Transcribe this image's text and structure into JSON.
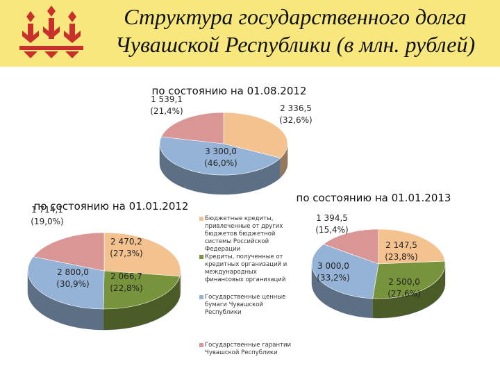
{
  "header": {
    "title_line1": "Структура государственного долга",
    "title_line2": "Чувашской Республики (в млн. рублей)"
  },
  "legend": [
    {
      "label": "Бюджетные кредиты, привлеченные от других бюджетов бюджетной системы Российской Федерации",
      "color": "#f4c28f"
    },
    {
      "label": "Кредиты, полученные от кредитных организаций и международных финансовых организаций",
      "color": "#77933c"
    },
    {
      "label": "Государственные ценные бумаги Чувашской Республики",
      "color": "#95b3d7"
    },
    {
      "label": "Государственные гарантии Чувашской Республики",
      "color": "#d99694"
    }
  ],
  "chart_data": [
    {
      "type": "pie",
      "title": "по состоянию на 01.08.2012",
      "slices": [
        {
          "value": 2336.5,
          "label": "2 336,5",
          "pct": "(32,6%)",
          "color": "#f4c28f"
        },
        {
          "value": 3300.0,
          "label": "3 300,0",
          "pct": "(46,0%)",
          "color": "#95b3d7"
        },
        {
          "value": 1539.1,
          "label": "1 539,1",
          "pct": "(21,4%)",
          "color": "#d99694"
        }
      ]
    },
    {
      "type": "pie",
      "title": "по состоянию на 01.01.2012",
      "slices": [
        {
          "value": 2470.2,
          "label": "2 470,2",
          "pct": "(27,3%)",
          "color": "#f4c28f"
        },
        {
          "value": 2066.7,
          "label": "2 066,7",
          "pct": "(22,8%)",
          "color": "#77933c"
        },
        {
          "value": 2800.0,
          "label": "2 800,0",
          "pct": "(30,9%)",
          "color": "#95b3d7"
        },
        {
          "value": 1714.1,
          "label": "1 714,1",
          "pct": "(19,0%)",
          "color": "#d99694"
        }
      ]
    },
    {
      "type": "pie",
      "title": "по состоянию на 01.01.2013",
      "slices": [
        {
          "value": 2147.5,
          "label": "2 147,5",
          "pct": "(23,8%)",
          "color": "#f4c28f"
        },
        {
          "value": 2500.0,
          "label": "2 500,0",
          "pct": "(27,6%)",
          "color": "#77933c"
        },
        {
          "value": 3000.0,
          "label": "3 000,0",
          "pct": "(33,2%)",
          "color": "#95b3d7"
        },
        {
          "value": 1394.5,
          "label": "1 394,5",
          "pct": "(15,4%)",
          "color": "#d99694"
        }
      ]
    }
  ]
}
